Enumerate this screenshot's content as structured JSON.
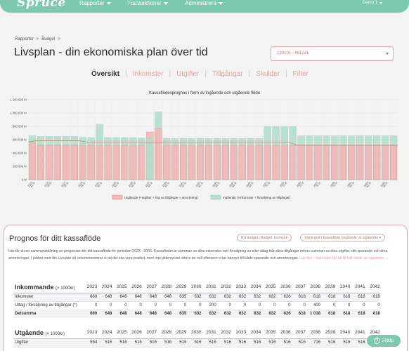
{
  "nav": {
    "logo": "Spruce",
    "items": [
      "Rapporter",
      "Transaktioner",
      "Administrera"
    ],
    "user": "Demo 1"
  },
  "breadcrumb": [
    "Rapporter",
    ">",
    "Budget",
    ">"
  ],
  "page_title": "Livsplan - din ekonomiska plan över tid",
  "selector_value": "230101 - 661231",
  "tabs": [
    "Översikt",
    "Inkomster",
    "Utgifter",
    "Tillgångar",
    "Skulder",
    "Filter"
  ],
  "chart_data": {
    "type": "bar",
    "title": "Kassaflödesprognos i form av ingående och utgående flöde",
    "ylim": [
      0,
      1200000
    ],
    "yticks": [
      "0 kr",
      "200 000 kr",
      "400 000 kr",
      "600 000 kr",
      "800 000 kr",
      "1 000 000 kr",
      "1 200 000 kr"
    ],
    "categories": [
      "2023\n42 år",
      "2024",
      "2025\n44 år",
      "2026",
      "2027\n46 år",
      "2028",
      "2029\n48 år",
      "2030",
      "2031\n50 år",
      "2032",
      "2033\n52 år",
      "2034",
      "2035\n54 år",
      "2036",
      "2037\n56 år",
      "2038",
      "2039\n58 år",
      "2040",
      "2041\n60 år",
      "2042",
      "2043\n62 år",
      "2044",
      "2045\n64 år",
      "2046",
      "2047\n66 år",
      "2048",
      "2049\n68 år",
      "2050",
      "2051\n70 år",
      "2052",
      "2053\n72 år",
      "2054",
      "2055\n74 år",
      "2056",
      "2057\n76 år",
      "2058",
      "2059\n78 år",
      "2060",
      "2061\n80 år",
      "2062",
      "2063\n82 år",
      "2064",
      "2065\n84 år",
      "2066"
    ],
    "xtick_labels": [
      "2023\n42 år",
      "2025\n44 år",
      "2027\n46 år",
      "2029\n48 år",
      "2031\n50 år",
      "2033\n52 år",
      "2035\n54 år",
      "2037\n56 år",
      "2039\n58 år",
      "2041\n60 år",
      "2043\n62 år",
      "2045\n64 år",
      "2047\n66 år",
      "2049\n68 år",
      "2051\n70 år",
      "2053\n72 år",
      "2055\n74 år",
      "2057\n76 år",
      "2059\n78 år",
      "2061\n80 år",
      "2063\n82 år",
      "2065\n84 år"
    ],
    "series": [
      {
        "name": "Utgående (+utgifter + köp av tillgångar + amortering)",
        "color": "#f2b8b8",
        "edge": "#d98888",
        "values": [
          554,
          516,
          516,
          516,
          516,
          516,
          516,
          516,
          516,
          516,
          516,
          516,
          516,
          516,
          716,
          770,
          516,
          516,
          516,
          516,
          516,
          516,
          516,
          516,
          516,
          516,
          516,
          516,
          516,
          516,
          516,
          516,
          516,
          516,
          516,
          516,
          516,
          516,
          516,
          516,
          516,
          516,
          516,
          516
        ]
      },
      {
        "name": "Ingående (+inkomster + försäljning av tillgångar)",
        "color": "#b4dfcc",
        "edge": "#9acbb6",
        "values": [
          660,
          648,
          648,
          648,
          648,
          648,
          635,
          632,
          832,
          632,
          632,
          632,
          632,
          626,
          618,
          1018,
          618,
          618,
          618,
          618,
          618,
          618,
          618,
          618,
          618,
          618,
          618,
          618,
          800,
          800,
          800,
          800,
          660,
          660,
          660,
          660,
          660,
          660,
          660,
          660,
          660,
          660,
          660,
          660
        ]
      }
    ],
    "line_values": [
      566,
      586,
      586,
      586,
      586,
      586,
      586,
      566,
      566,
      566,
      566,
      566,
      566,
      566,
      566,
      566,
      566,
      566,
      566,
      566,
      566,
      566,
      566,
      566,
      566,
      566,
      566,
      566,
      566,
      566,
      566,
      566,
      516,
      516,
      516,
      516,
      516,
      516,
      516,
      516,
      516,
      516,
      516,
      516
    ],
    "legend_position": "bottom"
  },
  "card": {
    "title": "Prognos för ditt kassaflöde",
    "pill1": "Byt budget | Budget: normal",
    "pill2": "Växla graf | Kassaflöde (ingående vs utgående)",
    "description": "Här får du en sammanställning av prognosen för ditt kassaflöde för perioden 2023 - 2066. Kassaflödet är summan av dina inkomster och försäljning av eller uttag från dina tillgångar minus summan av dina utgifter, ditt sparande och dina amorteringar. I jobbet med din Livsplan så rekommenderar vi att det ska vara positivt, men inte jättemycket större än noll eftersom vi tar hänsyn till både sparande och amorteringar.",
    "more_link": "Läs mer i manualen för att få fullt värde av rapporten →"
  },
  "income_table": {
    "title": "Inkommande",
    "unit": "(× 1000kr)",
    "years": [
      "2023",
      "2024",
      "2025",
      "2026",
      "2027",
      "2028",
      "2029",
      "2030",
      "2031",
      "2032",
      "2033",
      "2034",
      "2035",
      "2036",
      "2037",
      "2038",
      "2039",
      "2040",
      "2041",
      "2042"
    ],
    "rows": [
      {
        "label": "Inkomster",
        "values": [
          "660",
          "648",
          "648",
          "648",
          "648",
          "648",
          "635",
          "632",
          "632",
          "632",
          "632",
          "632",
          "632",
          "626",
          "618",
          "618",
          "618",
          "618",
          "618",
          "618"
        ]
      },
      {
        "label": "Uttag / försäljning av tillgångar (*)",
        "values": [
          "0",
          "0",
          "0",
          "0",
          "0",
          "0",
          "0",
          "0",
          "200",
          "0",
          "0",
          "0",
          "0",
          "0",
          "0",
          "400",
          "0",
          "0",
          "0",
          "0"
        ]
      },
      {
        "label": "Delsumma",
        "values": [
          "660",
          "648",
          "648",
          "648",
          "648",
          "648",
          "635",
          "632",
          "832",
          "632",
          "632",
          "632",
          "632",
          "626",
          "618",
          "1 018",
          "618",
          "618",
          "618",
          "618"
        ]
      }
    ]
  },
  "outgoing_table": {
    "title": "Utgående",
    "unit": "(× 1000kr)",
    "years": [
      "2023",
      "2024",
      "2025",
      "2026",
      "2027",
      "2028",
      "2029",
      "2030",
      "2031",
      "2032",
      "2033",
      "2034",
      "2035",
      "2036",
      "2037",
      "2038",
      "2039",
      "2040",
      "2041",
      "2042"
    ],
    "rows": [
      {
        "label": "Utgifter",
        "values": [
          "554",
          "516",
          "516",
          "516",
          "516",
          "516",
          "516",
          "516",
          "516",
          "516",
          "516",
          "516",
          "516",
          "516",
          "516",
          "716",
          "516",
          "516",
          "516",
          "516"
        ]
      }
    ]
  },
  "help_label": "Hjälp"
}
